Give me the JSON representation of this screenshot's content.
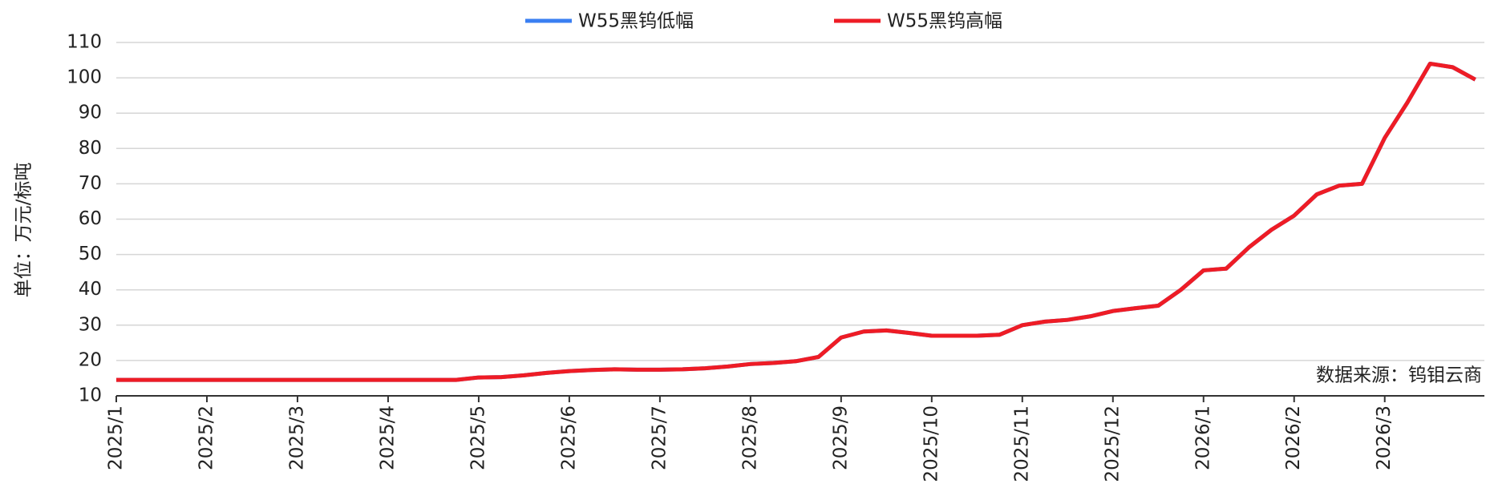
{
  "chart_data": {
    "type": "line",
    "y_label": "单位：万元/标吨",
    "annotation": "数据来源：钨钼云商",
    "categories": [
      "2025/1",
      null,
      null,
      null,
      "2025/2",
      null,
      null,
      null,
      "2025/3",
      null,
      null,
      null,
      "2025/4",
      null,
      null,
      null,
      "2025/5",
      null,
      null,
      null,
      "2025/6",
      null,
      null,
      null,
      "2025/7",
      null,
      null,
      null,
      "2025/8",
      null,
      null,
      null,
      "2025/9",
      null,
      null,
      null,
      "2025/10",
      null,
      null,
      null,
      "2025/11",
      null,
      null,
      null,
      "2025/12",
      null,
      null,
      null,
      "2026/1",
      null,
      null,
      null,
      "2026/2",
      null,
      null,
      null,
      "2026/3",
      null,
      null,
      null,
      null
    ],
    "series": [
      {
        "name": "W55黑钨低幅",
        "color": "#3a7ff2",
        "values": [
          14.5,
          14.5,
          14.5,
          14.5,
          14.5,
          14.5,
          14.5,
          14.5,
          14.5,
          14.5,
          14.5,
          14.5,
          14.5,
          14.5,
          14.5,
          14.5,
          15.2,
          15.3,
          15.8,
          16.5,
          17,
          17.3,
          17.5,
          17.4,
          17.4,
          17.5,
          17.8,
          18.3,
          19,
          19.3,
          19.8,
          21,
          26.5,
          28.2,
          28.5,
          27.8,
          27,
          27,
          27,
          27.3,
          30,
          31,
          31.5,
          32.5,
          34,
          34.8,
          35.5,
          40,
          45.5,
          46,
          52,
          57,
          61,
          67,
          69.5,
          70,
          83,
          93,
          104,
          103,
          99.5
        ]
      },
      {
        "name": "W55黑钨高幅",
        "color": "#ee1c25",
        "values": [
          14.5,
          14.5,
          14.5,
          14.5,
          14.5,
          14.5,
          14.5,
          14.5,
          14.5,
          14.5,
          14.5,
          14.5,
          14.5,
          14.5,
          14.5,
          14.5,
          15.2,
          15.3,
          15.8,
          16.5,
          17,
          17.3,
          17.5,
          17.4,
          17.4,
          17.5,
          17.8,
          18.3,
          19,
          19.3,
          19.8,
          21,
          26.5,
          28.2,
          28.5,
          27.8,
          27,
          27,
          27,
          27.3,
          30,
          31,
          31.5,
          32.5,
          34,
          34.8,
          35.5,
          40,
          45.5,
          46,
          52,
          57,
          61,
          67,
          69.5,
          70,
          83,
          93,
          104,
          103,
          99.5
        ]
      }
    ],
    "ylim": [
      10,
      110
    ],
    "yticks": [
      10,
      20,
      30,
      40,
      50,
      60,
      70,
      80,
      90,
      100,
      110
    ],
    "grid": true
  }
}
